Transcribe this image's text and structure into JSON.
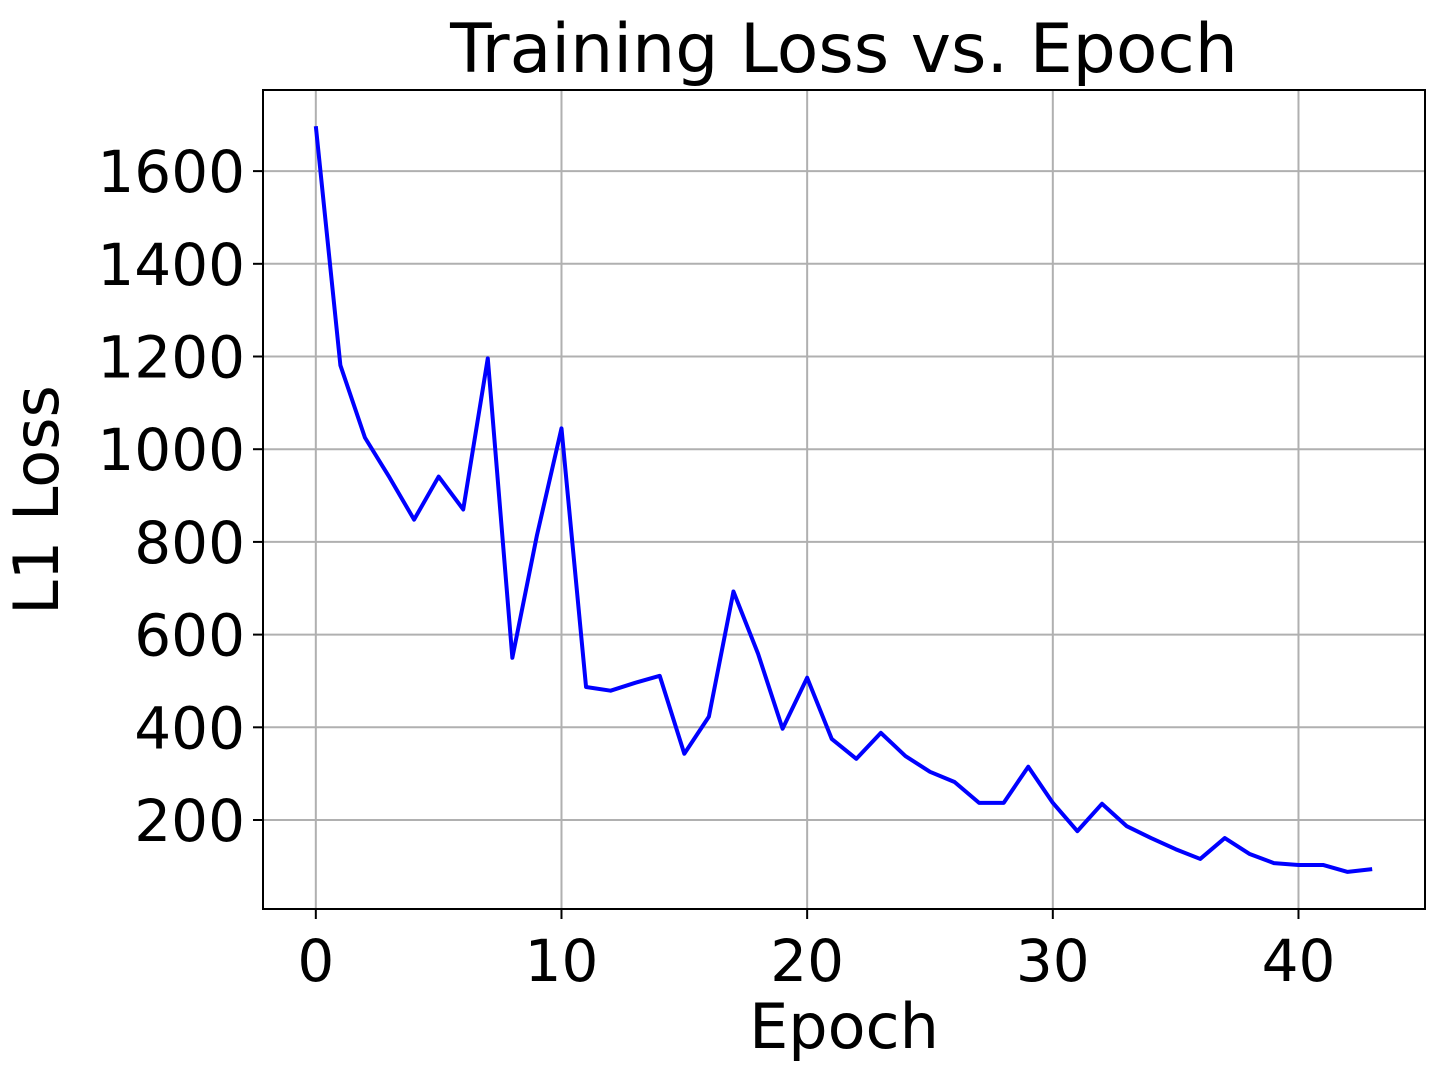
{
  "chart_data": {
    "type": "line",
    "title": "Training Loss vs. Epoch",
    "xlabel": "Epoch",
    "ylabel": "L1 Loss",
    "x": [
      0,
      1,
      2,
      3,
      4,
      5,
      6,
      7,
      8,
      9,
      10,
      11,
      12,
      13,
      14,
      15,
      16,
      17,
      18,
      19,
      20,
      21,
      22,
      23,
      24,
      25,
      26,
      27,
      28,
      29,
      30,
      31,
      32,
      33,
      34,
      35,
      36,
      37,
      38,
      39,
      40,
      41,
      42,
      43
    ],
    "series": [
      {
        "name": "L1 Loss",
        "color": "#0000ff",
        "values": [
          1697,
          1181,
          1025,
          939,
          848,
          941,
          870,
          1196,
          550,
          814,
          1045,
          487,
          479,
          496,
          511,
          343,
          423,
          693,
          559,
          397,
          507,
          375,
          332,
          388,
          338,
          304,
          282,
          237,
          237,
          315,
          237,
          176,
          235,
          187,
          161,
          137,
          116,
          161,
          127,
          107,
          103,
          103,
          88,
          94
        ]
      }
    ],
    "xlim": [
      -2.15,
      45.15
    ],
    "xticks": [
      0,
      10,
      20,
      30,
      40
    ],
    "ylim": [
      8,
      1775
    ],
    "yticks": [
      200,
      400,
      600,
      800,
      1000,
      1200,
      1400,
      1600
    ],
    "grid": true
  }
}
